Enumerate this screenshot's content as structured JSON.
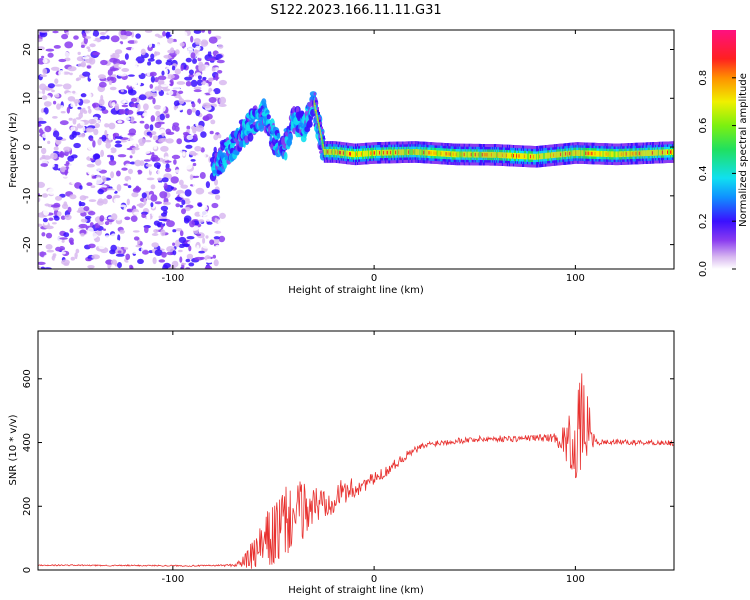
{
  "figure": {
    "title": "S122.2023.166.11.11.G31"
  },
  "chart_data": [
    {
      "type": "heatmap",
      "xlabel": "Height of straight line (km)",
      "ylabel": "Frequency (Hz)",
      "xlim": [
        -167,
        149
      ],
      "ylim": [
        -25,
        24
      ],
      "x_ticks": [
        -100,
        0,
        100
      ],
      "y_ticks": [
        -20,
        -10,
        0,
        10,
        20
      ],
      "colorbar": {
        "label": "Normalized spectral amplitude",
        "range": [
          0,
          1
        ],
        "ticks": [
          0.0,
          0.2,
          0.4,
          0.6,
          0.8
        ],
        "colormap": "white-purple-blue-cyan-green-yellow-orange-red-magenta"
      },
      "regions": [
        {
          "x_range": [
            -167,
            -75
          ],
          "y_range": [
            -25,
            24
          ],
          "description_amplitude": 0.15
        },
        {
          "x_range": [
            -80,
            -30
          ],
          "y_range": [
            -6,
            14
          ],
          "description_amplitude": 0.35
        },
        {
          "x_range": [
            -30,
            149
          ],
          "y_range": [
            -3,
            1
          ],
          "description_amplitude": 0.6
        }
      ],
      "ridge_frequency": [
        {
          "x": -80,
          "y": -4
        },
        {
          "x": -75,
          "y": -2
        },
        {
          "x": -70,
          "y": 0
        },
        {
          "x": -65,
          "y": 3
        },
        {
          "x": -60,
          "y": 5
        },
        {
          "x": -55,
          "y": 7
        },
        {
          "x": -50,
          "y": 2
        },
        {
          "x": -45,
          "y": -1
        },
        {
          "x": -40,
          "y": 6
        },
        {
          "x": -35,
          "y": 4
        },
        {
          "x": -30,
          "y": 9
        },
        {
          "x": -25,
          "y": -1
        },
        {
          "x": -20,
          "y": -1
        },
        {
          "x": -10,
          "y": -1.5
        },
        {
          "x": 0,
          "y": -1.2
        },
        {
          "x": 20,
          "y": -1
        },
        {
          "x": 40,
          "y": -1.5
        },
        {
          "x": 60,
          "y": -1.6
        },
        {
          "x": 80,
          "y": -2
        },
        {
          "x": 100,
          "y": -1.2
        },
        {
          "x": 120,
          "y": -1.5
        },
        {
          "x": 149,
          "y": -1
        }
      ]
    },
    {
      "type": "line",
      "xlabel": "Height of straight line (km)",
      "ylabel": "SNR (10 * v/v)",
      "xlim": [
        -167,
        149
      ],
      "ylim": [
        0,
        750
      ],
      "x_ticks": [
        -100,
        0,
        100
      ],
      "y_ticks": [
        0,
        200,
        400,
        600
      ],
      "color": "#e8312f",
      "series": [
        {
          "x": [
            -167,
            -150,
            -130,
            -110,
            -90,
            -80,
            -70,
            -65,
            -60,
            -55,
            -50,
            -45,
            -40,
            -35,
            -30,
            -25,
            -20,
            -15,
            -10,
            -5,
            0,
            5,
            10,
            15,
            20,
            25,
            30,
            40,
            50,
            60,
            70,
            80,
            90,
            95,
            100,
            103,
            105,
            108,
            110,
            120,
            130,
            140,
            149
          ],
          "y": [
            15,
            15,
            14,
            14,
            13,
            14,
            15,
            25,
            45,
            80,
            110,
            140,
            170,
            190,
            200,
            215,
            230,
            245,
            255,
            270,
            285,
            305,
            330,
            355,
            375,
            390,
            398,
            405,
            410,
            412,
            412,
            415,
            415,
            405,
            400,
            440,
            480,
            420,
            400,
            402,
            400,
            400,
            398
          ],
          "noise": [
            2,
            2,
            2,
            2,
            2,
            2,
            4,
            20,
            50,
            80,
            110,
            120,
            110,
            90,
            70,
            60,
            50,
            40,
            35,
            25,
            20,
            18,
            16,
            14,
            12,
            12,
            10,
            10,
            10,
            10,
            10,
            10,
            15,
            60,
            120,
            180,
            140,
            40,
            10,
            8,
            8,
            8,
            8
          ]
        }
      ]
    }
  ]
}
